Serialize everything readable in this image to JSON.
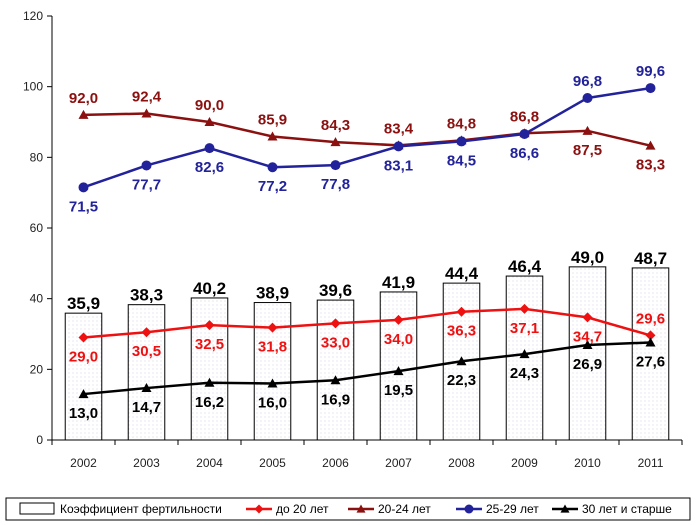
{
  "chart_data": {
    "type": "bar+line",
    "categories": [
      "2002",
      "2003",
      "2004",
      "2005",
      "2006",
      "2007",
      "2008",
      "2009",
      "2010",
      "2011"
    ],
    "ylim": [
      0,
      120
    ],
    "yticks": [
      "0",
      "20",
      "40",
      "60",
      "80",
      "100",
      "120"
    ],
    "grid": false,
    "legend_position": "bottom",
    "bars": {
      "name": "Коэффициент фертильности",
      "values": [
        35.9,
        38.3,
        40.2,
        38.9,
        39.6,
        41.9,
        44.4,
        46.4,
        49.0,
        48.7
      ],
      "labels": [
        "35,9",
        "38,3",
        "40,2",
        "38,9",
        "39,6",
        "41,9",
        "44,4",
        "46,4",
        "49,0",
        "48,7"
      ]
    },
    "series": [
      {
        "name": "до 20 лет",
        "color": "#ee1111",
        "marker": "diamond",
        "values": [
          29.0,
          30.5,
          32.5,
          31.8,
          33.0,
          34.0,
          36.3,
          37.1,
          34.7,
          29.6
        ],
        "labels": [
          "29,0",
          "30,5",
          "32,5",
          "31,8",
          "33,0",
          "34,0",
          "36,3",
          "37,1",
          "34,7",
          "29,6"
        ]
      },
      {
        "name": "20-24 лет",
        "color": "#8b1010",
        "marker": "triangle",
        "values": [
          92.0,
          92.4,
          90.0,
          85.9,
          84.3,
          83.4,
          84.8,
          86.8,
          87.5,
          83.3
        ],
        "labels": [
          "92,0",
          "92,4",
          "90,0",
          "85,9",
          "84,3",
          "83,4",
          "84,8",
          "86,8",
          "87,5",
          "83,3"
        ]
      },
      {
        "name": "25-29 лет",
        "color": "#22229a",
        "marker": "circle",
        "values": [
          71.5,
          77.7,
          82.6,
          77.2,
          77.8,
          83.1,
          84.5,
          86.6,
          96.8,
          99.6
        ],
        "labels": [
          "71,5",
          "77,7",
          "82,6",
          "77,2",
          "77,8",
          "83,1",
          "84,5",
          "86,6",
          "96,8",
          "99,6"
        ]
      },
      {
        "name": "30 лет и старше",
        "color": "#000000",
        "marker": "triangle",
        "values": [
          13.0,
          14.7,
          16.2,
          16.0,
          16.9,
          19.5,
          22.3,
          24.3,
          26.9,
          27.6
        ],
        "labels": [
          "13,0",
          "14,7",
          "16,2",
          "16,0",
          "16,9",
          "19,5",
          "22,3",
          "24,3",
          "26,9",
          "27,6"
        ]
      }
    ]
  }
}
